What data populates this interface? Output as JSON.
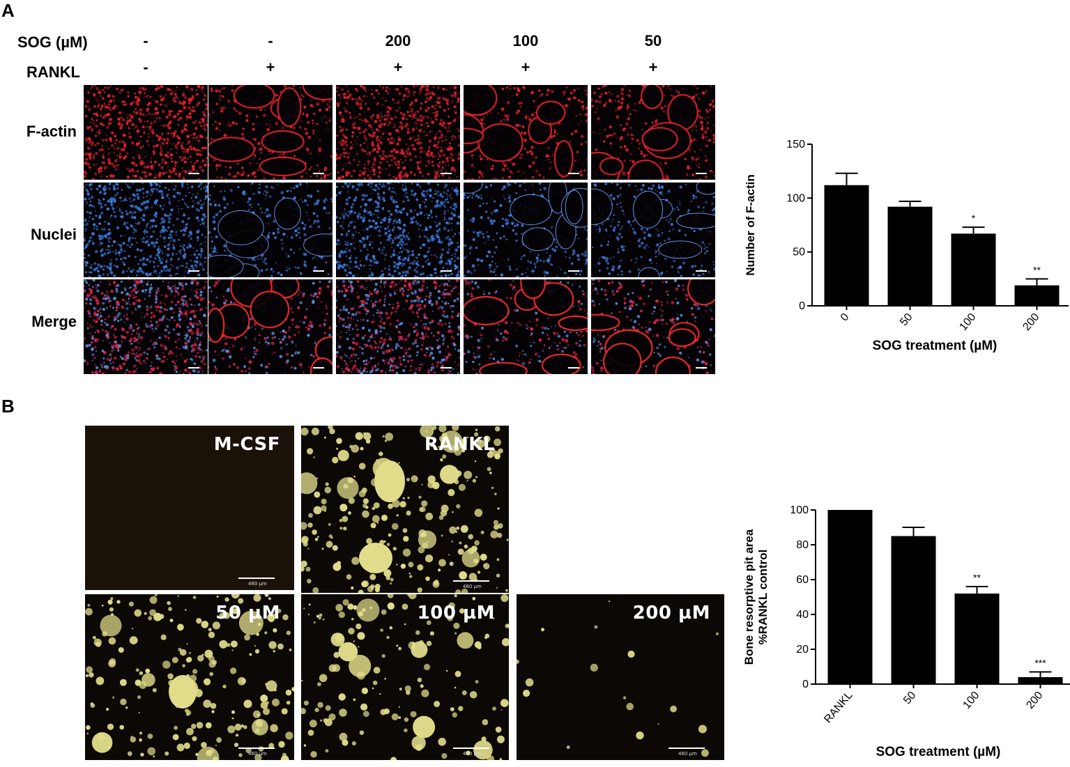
{
  "panel_a": {
    "letter": "A",
    "sog_label": "SOG (µM)",
    "rankl_label": "RANKL",
    "sog_values": [
      "-",
      "-",
      "200",
      "100",
      "50"
    ],
    "rankl_values": [
      "-",
      "+",
      "+",
      "+",
      "+"
    ],
    "row_labels": [
      "F-actin",
      "Nuclei",
      "Merge"
    ],
    "colors": {
      "factin": "#e8202a",
      "nuclei": "#3a7bdc",
      "merge_a": "#e0204a",
      "merge_b": "#5a8de0"
    }
  },
  "panel_b": {
    "letter": "B",
    "tile_labels": [
      "M-CSF",
      "RANKL",
      "50 µM",
      "100 µM",
      "200 µM"
    ],
    "scale_text": "460 µm",
    "pit_level": [
      0.0,
      0.6,
      0.5,
      0.35,
      0.04
    ],
    "colors": {
      "pit": "#e0dc8a",
      "background": "#0b0805"
    }
  },
  "chart_data": [
    {
      "type": "bar",
      "categories": [
        "0",
        "50",
        "100",
        "200"
      ],
      "values": [
        112,
        92,
        67,
        19
      ],
      "errors": [
        11,
        5,
        6,
        6
      ],
      "annotations": [
        "",
        "",
        "*",
        "**"
      ],
      "xlabel": "SOG treatment (µM)",
      "ylabel": "Number of F-actin",
      "ylim": [
        0,
        150
      ],
      "yticks": [
        "0",
        "50",
        "100",
        "150"
      ],
      "bar_color": "#000000"
    },
    {
      "type": "bar",
      "categories": [
        "RANKL",
        "50",
        "100",
        "200"
      ],
      "values": [
        100,
        85,
        52,
        4
      ],
      "errors": [
        0,
        5,
        4,
        3
      ],
      "annotations": [
        "",
        "",
        "**",
        "***"
      ],
      "xlabel": "SOG treatment (µM)",
      "ylabel_lines": [
        "Bone resorptive pit area",
        "%RANKL control"
      ],
      "ylim": [
        0,
        100
      ],
      "yticks": [
        "0",
        "20",
        "40",
        "60",
        "80",
        "100"
      ],
      "bar_color": "#000000"
    }
  ]
}
